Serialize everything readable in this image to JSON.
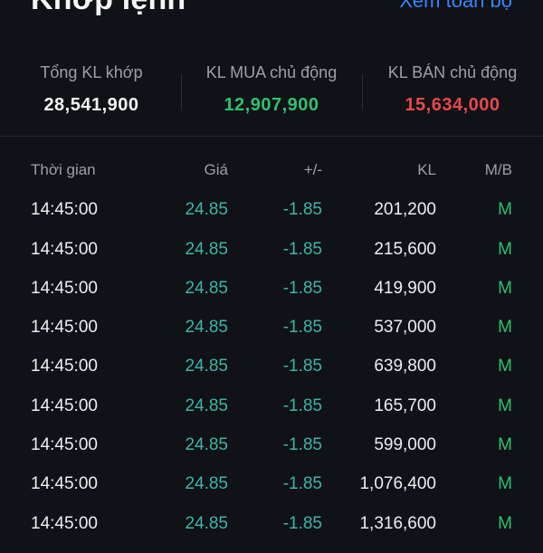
{
  "header": {
    "title": "Khớp lệnh",
    "view_all": "Xem toàn bộ"
  },
  "summary": {
    "total": {
      "label": "Tổng KL khớp",
      "value": "28,541,900"
    },
    "buy": {
      "label": "KL MUA chủ động",
      "value": "12,907,900"
    },
    "sell": {
      "label": "KL BÁN chủ động",
      "value": "15,634,000"
    }
  },
  "table": {
    "headers": {
      "time": "Thời gian",
      "price": "Giá",
      "change": "+/-",
      "volume": "KL",
      "side": "M/B"
    },
    "rows": [
      {
        "time": "14:45:00",
        "price": "24.85",
        "change": "-1.85",
        "volume": "201,200",
        "side": "M"
      },
      {
        "time": "14:45:00",
        "price": "24.85",
        "change": "-1.85",
        "volume": "215,600",
        "side": "M"
      },
      {
        "time": "14:45:00",
        "price": "24.85",
        "change": "-1.85",
        "volume": "419,900",
        "side": "M"
      },
      {
        "time": "14:45:00",
        "price": "24.85",
        "change": "-1.85",
        "volume": "537,000",
        "side": "M"
      },
      {
        "time": "14:45:00",
        "price": "24.85",
        "change": "-1.85",
        "volume": "639,800",
        "side": "M"
      },
      {
        "time": "14:45:00",
        "price": "24.85",
        "change": "-1.85",
        "volume": "165,700",
        "side": "M"
      },
      {
        "time": "14:45:00",
        "price": "24.85",
        "change": "-1.85",
        "volume": "599,000",
        "side": "M"
      },
      {
        "time": "14:45:00",
        "price": "24.85",
        "change": "-1.85",
        "volume": "1,076,400",
        "side": "M"
      },
      {
        "time": "14:45:00",
        "price": "24.85",
        "change": "-1.85",
        "volume": "1,316,600",
        "side": "M"
      }
    ]
  },
  "colors": {
    "background": "#101217",
    "link": "#3b82f6",
    "buy_green": "#2fbf71",
    "sell_red": "#e5484d",
    "price_teal": "#3fb4a6",
    "change_teal": "#3fb4a6"
  }
}
